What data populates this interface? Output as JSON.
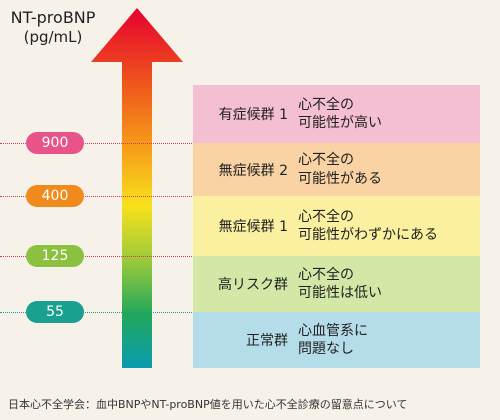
{
  "title": {
    "main": "NT-proBNP",
    "unit": "(pg/mL)"
  },
  "thresholds": [
    {
      "value": "900",
      "color": "#e8548a"
    },
    {
      "value": "400",
      "color": "#f08a1a"
    },
    {
      "value": "125",
      "color": "#8cc040"
    },
    {
      "value": "55",
      "color": "#1aa08e"
    }
  ],
  "bands": [
    {
      "name": "有症候群 1",
      "desc_line1": "心不全の",
      "desc_line2": "可能性が高い",
      "color": "#f4bfd2"
    },
    {
      "name": "無症候群 2",
      "desc_line1": "心不全の",
      "desc_line2": "可能性がある",
      "color": "#f9d3a4"
    },
    {
      "name": "無症候群 1",
      "desc_line1": "心不全の",
      "desc_line2": "可能性がわずかにある",
      "color": "#fbf0a0"
    },
    {
      "name": "高リスク群",
      "desc_line1": "心不全の",
      "desc_line2": "可能性は低い",
      "color": "#d3e7a6"
    },
    {
      "name": "正常群",
      "desc_line1": "心血管系に",
      "desc_line2": "問題なし",
      "color": "#b5dde9"
    }
  ],
  "footer": "日本心不全学会：血中BNPやNT-proBNP値を用いた心不全診療の留意点について"
}
